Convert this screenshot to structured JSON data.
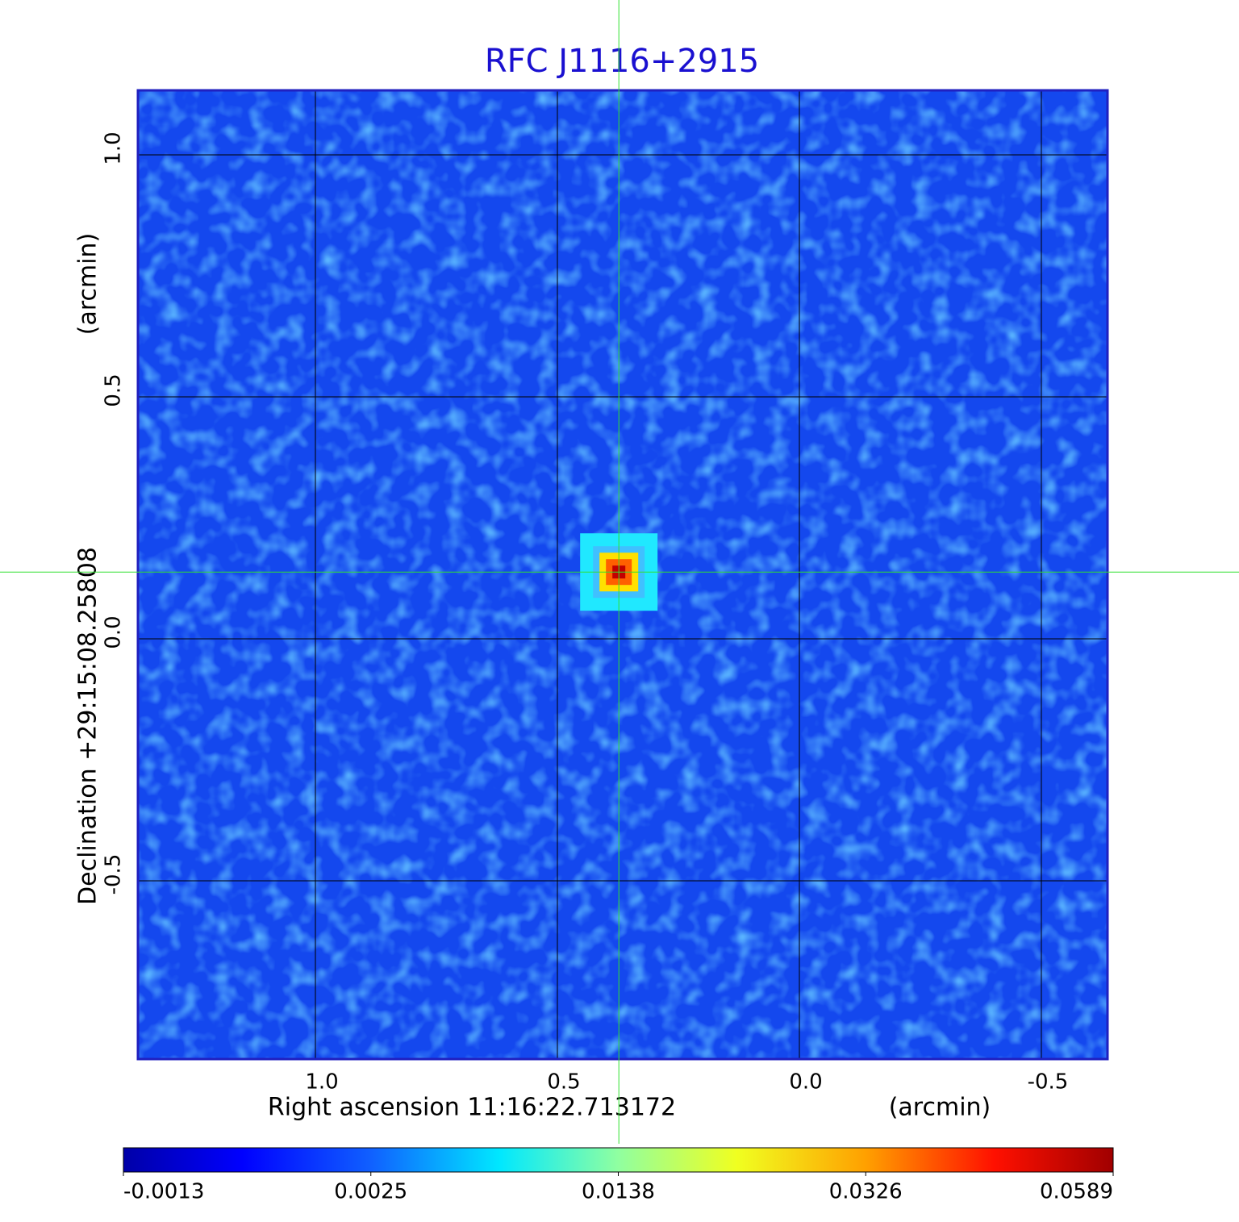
{
  "chart_data": {
    "type": "heatmap",
    "title": "RFC J1116+2915",
    "xlabel": "Right ascension  11:16:22.713172",
    "xunit": "(arcmin)",
    "ylabel": "Declination  +29:15:08.25808",
    "yunit": "(arcmin)",
    "xlim": [
      1.3667,
      -0.6367
    ],
    "ylim": [
      -0.8683,
      1.1333
    ],
    "xticks": [
      {
        "value": 1,
        "label": "1.0"
      },
      0.5,
      {
        "value": 0,
        "label": "0.0"
      },
      -0.5
    ],
    "yticks": [
      {
        "value": -0.5,
        "label": "-0.5"
      },
      {
        "value": 0,
        "label": "0.0"
      },
      0.5,
      {
        "value": 1,
        "label": "1.0"
      }
    ],
    "grid": true,
    "marker": {
      "x": 0.373,
      "y": 0.138
    },
    "colorbar": {
      "range": [
        -0.0013,
        0.0589
      ],
      "ticks": [
        -0.0013,
        0.0025,
        0.0138,
        0.0326,
        0.0589
      ]
    }
  }
}
